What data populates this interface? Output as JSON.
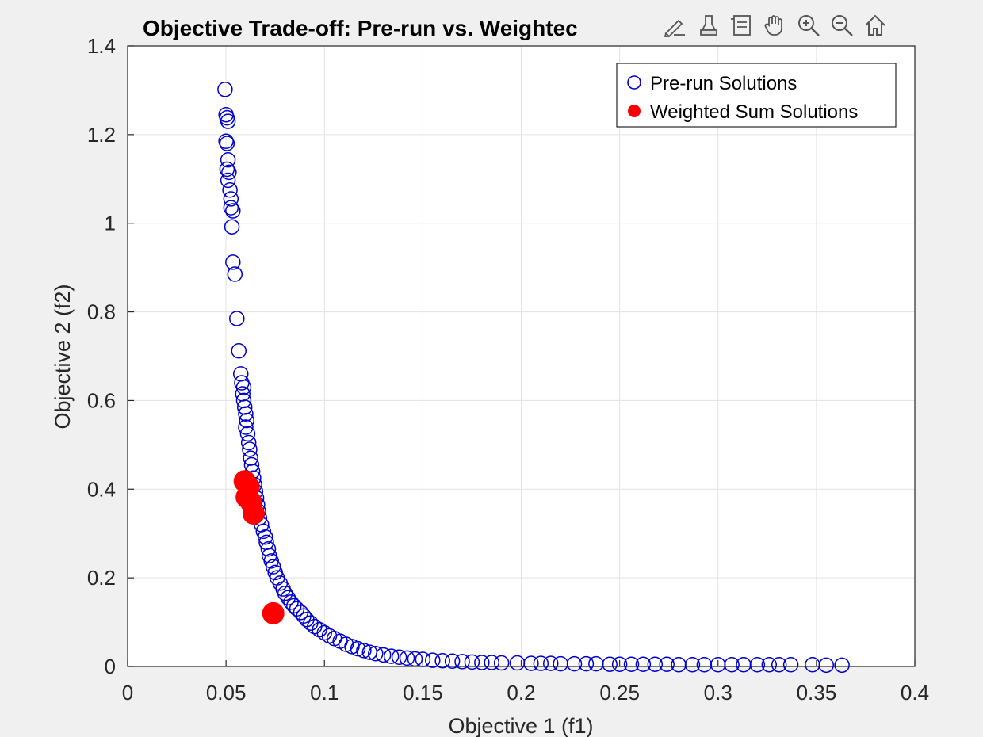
{
  "toolbar": {
    "icons": [
      "edit-icon",
      "brush-icon",
      "legend-icon",
      "pan-hand-icon",
      "zoom-in-icon",
      "zoom-out-icon",
      "home-icon"
    ]
  },
  "chart_data": {
    "type": "scatter",
    "title": "Objective Trade-off: Pre-run vs. Weighted Sum",
    "title_visible": "Objective Trade-off: Pre-run vs. Weightec",
    "xlabel": "Objective 1 (f1)",
    "ylabel": "Objective 2 (f2)",
    "xlim": [
      0,
      0.4
    ],
    "ylim": [
      0,
      1.4
    ],
    "xticks": [
      "0",
      "0.05",
      "0.1",
      "0.15",
      "0.2",
      "0.25",
      "0.3",
      "0.35",
      "0.4"
    ],
    "yticks": [
      "0",
      "0.2",
      "0.4",
      "0.6",
      "0.8",
      "1",
      "1.2",
      "1.4"
    ],
    "grid": true,
    "legend_position": "top-right",
    "colors": {
      "prerun": "#0000cc",
      "weighted": "#ff0000",
      "axes_bg": "#ffffff",
      "grid": "#e3e3e3"
    },
    "series": [
      {
        "name": "Pre-run Solutions",
        "marker": "open-circle",
        "points": [
          [
            0.0495,
            1.302
          ],
          [
            0.05,
            1.245
          ],
          [
            0.0505,
            1.238
          ],
          [
            0.051,
            1.23
          ],
          [
            0.05,
            1.185
          ],
          [
            0.0505,
            1.18
          ],
          [
            0.051,
            1.143
          ],
          [
            0.0505,
            1.122
          ],
          [
            0.0515,
            1.115
          ],
          [
            0.051,
            1.097
          ],
          [
            0.052,
            1.075
          ],
          [
            0.0525,
            1.055
          ],
          [
            0.0525,
            1.035
          ],
          [
            0.0535,
            1.028
          ],
          [
            0.053,
            0.992
          ],
          [
            0.0535,
            0.912
          ],
          [
            0.0545,
            0.885
          ],
          [
            0.0555,
            0.785
          ],
          [
            0.0565,
            0.712
          ],
          [
            0.0575,
            0.66
          ],
          [
            0.058,
            0.64
          ],
          [
            0.059,
            0.63
          ],
          [
            0.0585,
            0.615
          ],
          [
            0.059,
            0.6
          ],
          [
            0.0595,
            0.585
          ],
          [
            0.06,
            0.57
          ],
          [
            0.0605,
            0.555
          ],
          [
            0.06,
            0.54
          ],
          [
            0.061,
            0.525
          ],
          [
            0.0615,
            0.505
          ],
          [
            0.062,
            0.49
          ],
          [
            0.0625,
            0.47
          ],
          [
            0.063,
            0.455
          ],
          [
            0.0635,
            0.44
          ],
          [
            0.064,
            0.425
          ],
          [
            0.0645,
            0.41
          ],
          [
            0.065,
            0.395
          ],
          [
            0.0655,
            0.38
          ],
          [
            0.066,
            0.365
          ],
          [
            0.0665,
            0.35
          ],
          [
            0.067,
            0.335
          ],
          [
            0.068,
            0.32
          ],
          [
            0.069,
            0.305
          ],
          [
            0.07,
            0.292
          ],
          [
            0.0705,
            0.28
          ],
          [
            0.0715,
            0.265
          ],
          [
            0.072,
            0.25
          ],
          [
            0.073,
            0.238
          ],
          [
            0.074,
            0.225
          ],
          [
            0.075,
            0.212
          ],
          [
            0.076,
            0.2
          ],
          [
            0.0775,
            0.188
          ],
          [
            0.079,
            0.175
          ],
          [
            0.08,
            0.165
          ],
          [
            0.0815,
            0.155
          ],
          [
            0.083,
            0.145
          ],
          [
            0.0845,
            0.137
          ],
          [
            0.086,
            0.13
          ],
          [
            0.088,
            0.122
          ],
          [
            0.0895,
            0.114
          ],
          [
            0.091,
            0.106
          ],
          [
            0.093,
            0.098
          ],
          [
            0.095,
            0.09
          ],
          [
            0.0975,
            0.083
          ],
          [
            0.1,
            0.076
          ],
          [
            0.1025,
            0.069
          ],
          [
            0.105,
            0.063
          ],
          [
            0.108,
            0.057
          ],
          [
            0.111,
            0.05
          ],
          [
            0.114,
            0.045
          ],
          [
            0.117,
            0.04
          ],
          [
            0.12,
            0.036
          ],
          [
            0.123,
            0.032
          ],
          [
            0.126,
            0.029
          ],
          [
            0.13,
            0.026
          ],
          [
            0.134,
            0.023
          ],
          [
            0.138,
            0.021
          ],
          [
            0.142,
            0.019
          ],
          [
            0.146,
            0.017
          ],
          [
            0.15,
            0.016
          ],
          [
            0.155,
            0.014
          ],
          [
            0.16,
            0.013
          ],
          [
            0.165,
            0.012
          ],
          [
            0.17,
            0.011
          ],
          [
            0.175,
            0.01
          ],
          [
            0.18,
            0.009
          ],
          [
            0.185,
            0.009
          ],
          [
            0.19,
            0.008
          ],
          [
            0.198,
            0.008
          ],
          [
            0.205,
            0.007
          ],
          [
            0.21,
            0.007
          ],
          [
            0.215,
            0.007
          ],
          [
            0.22,
            0.006
          ],
          [
            0.227,
            0.006
          ],
          [
            0.233,
            0.006
          ],
          [
            0.238,
            0.006
          ],
          [
            0.245,
            0.005
          ],
          [
            0.25,
            0.005
          ],
          [
            0.256,
            0.005
          ],
          [
            0.262,
            0.005
          ],
          [
            0.268,
            0.005
          ],
          [
            0.274,
            0.005
          ],
          [
            0.28,
            0.004
          ],
          [
            0.287,
            0.004
          ],
          [
            0.293,
            0.004
          ],
          [
            0.3,
            0.004
          ],
          [
            0.307,
            0.004
          ],
          [
            0.313,
            0.004
          ],
          [
            0.32,
            0.004
          ],
          [
            0.326,
            0.004
          ],
          [
            0.331,
            0.004
          ],
          [
            0.337,
            0.004
          ],
          [
            0.348,
            0.004
          ],
          [
            0.355,
            0.003
          ],
          [
            0.363,
            0.003
          ]
        ]
      },
      {
        "name": "Weighted Sum Solutions",
        "marker": "filled-circle",
        "points": [
          [
            0.0595,
            0.418
          ],
          [
            0.0615,
            0.405
          ],
          [
            0.0605,
            0.382
          ],
          [
            0.0625,
            0.372
          ],
          [
            0.064,
            0.345
          ],
          [
            0.074,
            0.12
          ]
        ]
      }
    ]
  }
}
